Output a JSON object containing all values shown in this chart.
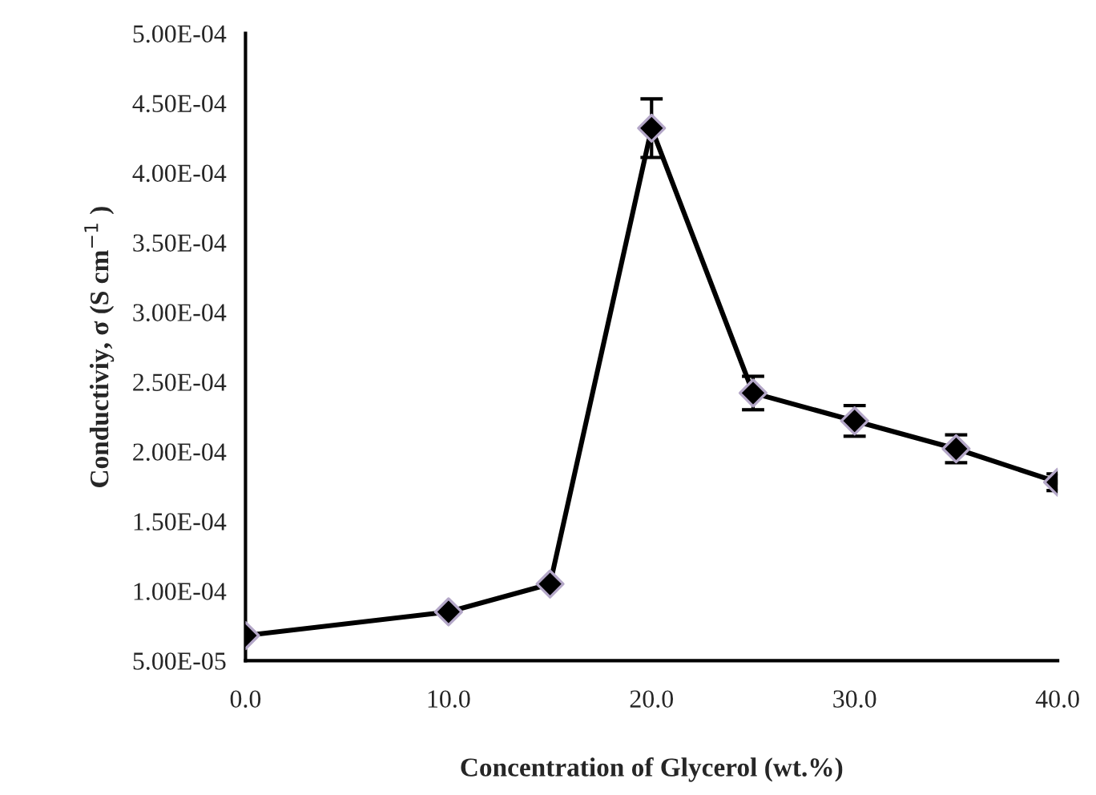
{
  "chart_data": {
    "type": "line",
    "xlabel": "Concentration of Glycerol (wt.%)",
    "ylabel": "Conductiviy, σ (S cm$^{−1}$ )",
    "x": [
      0,
      10,
      15,
      20,
      25,
      30,
      35,
      40
    ],
    "series": [
      {
        "color": "#000000",
        "values": [
          6.8e-05,
          8.5e-05,
          0.000105,
          0.000432,
          0.000242,
          0.000222,
          0.000202,
          0.000178
        ],
        "errors": [
          null,
          null,
          null,
          2.1e-05,
          1.2e-05,
          1.1e-05,
          1e-05,
          6e-06
        ]
      }
    ],
    "marker": "diamond",
    "line_style": "solid",
    "grid": false,
    "legend": false,
    "xlim": [
      0,
      40
    ],
    "xticks": [
      {
        "value": 0,
        "label": "0.0"
      },
      {
        "value": 10,
        "label": "10.0"
      },
      {
        "value": 20,
        "label": "20.0"
      },
      {
        "value": 30,
        "label": "30.0"
      },
      {
        "value": 40,
        "label": "40.0"
      }
    ],
    "ylim": [
      5e-05,
      0.0005
    ],
    "yticks": [
      {
        "value": 5e-05,
        "label": "5.00E-05"
      },
      {
        "value": 0.0001,
        "label": "1.00E-04"
      },
      {
        "value": 0.00015,
        "label": "1.50E-04"
      },
      {
        "value": 0.0002,
        "label": "2.00E-04"
      },
      {
        "value": 0.00025,
        "label": "2.50E-04"
      },
      {
        "value": 0.0003,
        "label": "3.00E-04"
      },
      {
        "value": 0.00035,
        "label": "3.50E-04"
      },
      {
        "value": 0.0004,
        "label": "4.00E-04"
      },
      {
        "value": 0.00045,
        "label": "4.50E-04"
      },
      {
        "value": 0.0005,
        "label": "5.00E-04"
      }
    ]
  }
}
